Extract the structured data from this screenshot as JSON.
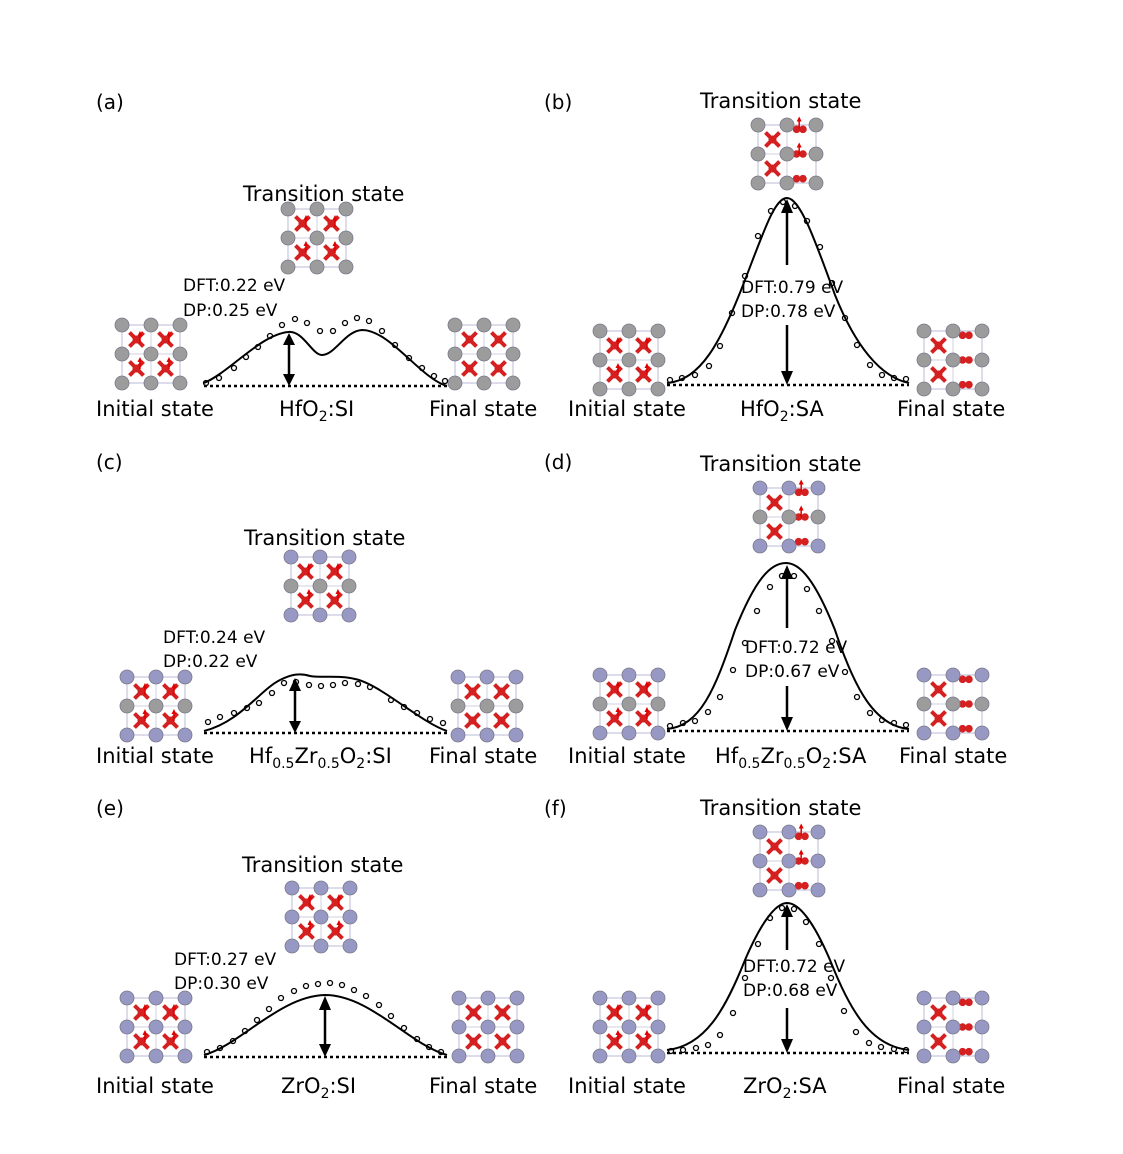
{
  "figure": {
    "common": {
      "initial_label": "Initial state",
      "final_label": "Final state",
      "transition_label": "Transition state"
    },
    "colors": {
      "oxygen": "#d42020",
      "hafnium": "#9c9c9c",
      "zirconium": "#9898c4",
      "arrow": "#e00000",
      "curve": "#000000"
    },
    "panels": [
      {
        "id": "a",
        "label": "(a)",
        "type": "SI",
        "title_main": "HfO",
        "title_sub": "2",
        "title_rest": ":SI",
        "dft": "DFT:0.22 eV",
        "dp": "DP:0.25 eV",
        "dft_barrier_eV": 0.22,
        "dp_barrier_eV": 0.25,
        "cation_initial": "Hf",
        "cation_transition": "Hf",
        "cation_final": "Hf"
      },
      {
        "id": "b",
        "label": "(b)",
        "type": "SA",
        "title_main": "HfO",
        "title_sub": "2",
        "title_rest": ":SA",
        "dft": "DFT:0.79 eV",
        "dp": "DP:0.78 eV",
        "dft_barrier_eV": 0.79,
        "dp_barrier_eV": 0.78,
        "cation_initial": "Hf",
        "cation_transition": "Hf",
        "cation_final": "Hf"
      },
      {
        "id": "c",
        "label": "(c)",
        "type": "SI",
        "title_main": "Hf",
        "title_sub": "0.5",
        "title_mid": "Zr",
        "title_sub2": "0.5",
        "title_mid2": "O",
        "title_sub3": "2",
        "title_rest": ":SI",
        "dft": "DFT:0.24 eV",
        "dp": "DP:0.22 eV",
        "dft_barrier_eV": 0.24,
        "dp_barrier_eV": 0.22,
        "cation_initial": "mixed",
        "cation_transition": "mixed",
        "cation_final": "mixed"
      },
      {
        "id": "d",
        "label": "(d)",
        "type": "SA",
        "title_main": "Hf",
        "title_sub": "0.5",
        "title_mid": "Zr",
        "title_sub2": "0.5",
        "title_mid2": "O",
        "title_sub3": "2",
        "title_rest": ":SA",
        "dft": "DFT:0.72 eV",
        "dp": "DP:0.67 eV",
        "dft_barrier_eV": 0.72,
        "dp_barrier_eV": 0.67,
        "cation_initial": "mixed",
        "cation_transition": "mixed",
        "cation_final": "mixed"
      },
      {
        "id": "e",
        "label": "(e)",
        "type": "SI",
        "title_main": "ZrO",
        "title_sub": "2",
        "title_rest": ":SI",
        "dft": "DFT:0.27 eV",
        "dp": "DP:0.30 eV",
        "dft_barrier_eV": 0.27,
        "dp_barrier_eV": 0.3,
        "cation_initial": "Zr",
        "cation_transition": "Zr",
        "cation_final": "Zr"
      },
      {
        "id": "f",
        "label": "(f)",
        "type": "SA",
        "title_main": "ZrO",
        "title_sub": "2",
        "title_rest": ":SA",
        "dft": "DFT:0.72 eV",
        "dp": "DP:0.68 eV",
        "dft_barrier_eV": 0.72,
        "dp_barrier_eV": 0.68,
        "cation_initial": "Zr",
        "cation_transition": "Zr",
        "cation_final": "Zr"
      }
    ]
  }
}
